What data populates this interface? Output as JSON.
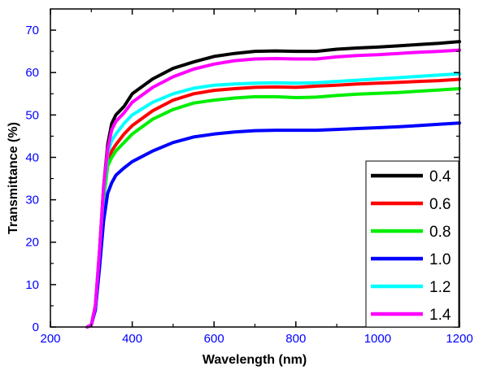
{
  "chart_data": {
    "type": "line",
    "xlabel": "Wavelength (nm)",
    "ylabel": "Transmittance (%)",
    "xlim": [
      200,
      1200
    ],
    "ylim": [
      0,
      75
    ],
    "xticks": [
      200,
      400,
      600,
      800,
      1000,
      1200
    ],
    "yticks": [
      0,
      10,
      20,
      30,
      40,
      50,
      60,
      70
    ],
    "tick_label_color": "#0000ff",
    "grid": false,
    "legend_position": "bottom-right",
    "x": [
      290,
      300,
      310,
      320,
      330,
      340,
      350,
      360,
      380,
      400,
      450,
      500,
      550,
      600,
      650,
      700,
      750,
      800,
      850,
      900,
      950,
      1000,
      1050,
      1100,
      1150,
      1200
    ],
    "series": [
      {
        "name": "0.4",
        "color": "#000000",
        "values": [
          0,
          0.5,
          5,
          18,
          33,
          43,
          48,
          50,
          52,
          55,
          58.5,
          61,
          62.5,
          63.8,
          64.5,
          65,
          65.1,
          65,
          65,
          65.5,
          65.8,
          66,
          66.3,
          66.6,
          66.9,
          67.3
        ]
      },
      {
        "name": "0.6",
        "color": "#ff0000",
        "values": [
          0,
          0.5,
          5,
          17,
          31,
          39,
          41.5,
          43,
          45.5,
          47.5,
          51,
          53.5,
          55,
          55.8,
          56.2,
          56.5,
          56.6,
          56.5,
          56.8,
          57,
          57.3,
          57.5,
          57.7,
          57.9,
          58.1,
          58.4
        ]
      },
      {
        "name": "0.8",
        "color": "#00ee00",
        "values": [
          0,
          0.5,
          4.5,
          16,
          30,
          38,
          40,
          41.5,
          43.5,
          45.5,
          49,
          51.3,
          52.8,
          53.5,
          54,
          54.3,
          54.3,
          54.1,
          54.2,
          54.6,
          54.9,
          55.1,
          55.3,
          55.6,
          55.9,
          56.2
        ]
      },
      {
        "name": "1.0",
        "color": "#0000ff",
        "values": [
          0,
          0.5,
          4,
          14,
          25,
          31.5,
          34,
          35.8,
          37.5,
          39,
          41.5,
          43.5,
          44.8,
          45.5,
          46,
          46.3,
          46.4,
          46.4,
          46.4,
          46.6,
          46.8,
          47,
          47.2,
          47.5,
          47.8,
          48.1
        ]
      },
      {
        "name": "1.2",
        "color": "#00ffff",
        "values": [
          0,
          0.5,
          5,
          18,
          32,
          41,
          44,
          45.5,
          48,
          50,
          53,
          55,
          56.3,
          57,
          57.3,
          57.5,
          57.6,
          57.5,
          57.6,
          57.9,
          58.2,
          58.5,
          58.8,
          59.1,
          59.4,
          59.7
        ]
      },
      {
        "name": "1.4",
        "color": "#ff00ff",
        "values": [
          0,
          0.5,
          5,
          18,
          33,
          42,
          46.5,
          48.5,
          50.5,
          53,
          56.5,
          59,
          60.8,
          62,
          62.8,
          63.2,
          63.3,
          63.2,
          63.2,
          63.7,
          64,
          64.2,
          64.5,
          64.8,
          65,
          65.3
        ]
      }
    ]
  }
}
